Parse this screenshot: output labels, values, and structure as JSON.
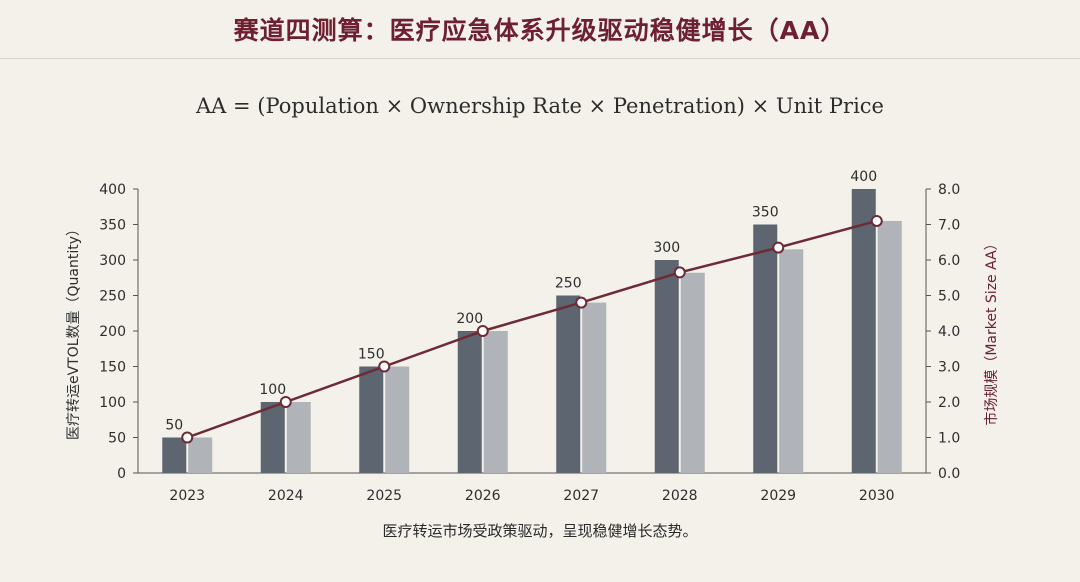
{
  "header": {
    "title": "赛道四测算：医疗应急体系升级驱动稳健增长（AA）",
    "formula": "AA = (Population × Ownership Rate × Penetration) × Unit Price"
  },
  "footnote": "医疗转运市场受政策驱动，呈现稳健增长态势。",
  "colors": {
    "bar_dark": "#5d6570",
    "bar_light": "#b0b3b7",
    "line": "#6e2a35",
    "title": "#6e2030"
  },
  "chart_data": {
    "type": "bar",
    "categories": [
      "2023",
      "2024",
      "2025",
      "2026",
      "2027",
      "2028",
      "2029",
      "2030"
    ],
    "series": [
      {
        "name": "eVTOL数量",
        "axis": "left",
        "values": [
          50,
          100,
          150,
          200,
          250,
          300,
          350,
          400
        ]
      },
      {
        "name": "eVTOL数量（浅色）",
        "axis": "left",
        "values": [
          50,
          100,
          150,
          200,
          240,
          282,
          315,
          355
        ]
      },
      {
        "name": "市场规模",
        "axis": "right",
        "type": "line",
        "values": [
          1.0,
          2.0,
          3.0,
          4.0,
          4.8,
          5.65,
          6.35,
          7.1
        ]
      }
    ],
    "data_labels": [
      "50",
      "100",
      "150",
      "200",
      "250",
      "300",
      "350",
      "400"
    ],
    "ylabel_left": "医疗转运eVTOL数量（Quantity）",
    "ylabel_right": "市场规模（Market Size AA）",
    "ylim_left": [
      0,
      400
    ],
    "ylim_right": [
      0,
      8
    ],
    "yticks_left": [
      "0",
      "50",
      "100",
      "150",
      "200",
      "250",
      "300",
      "350",
      "400"
    ],
    "yticks_right": [
      "0.0",
      "1.0",
      "2.0",
      "3.0",
      "4.0",
      "5.0",
      "6.0",
      "7.0",
      "8.0"
    ],
    "grid": false
  }
}
